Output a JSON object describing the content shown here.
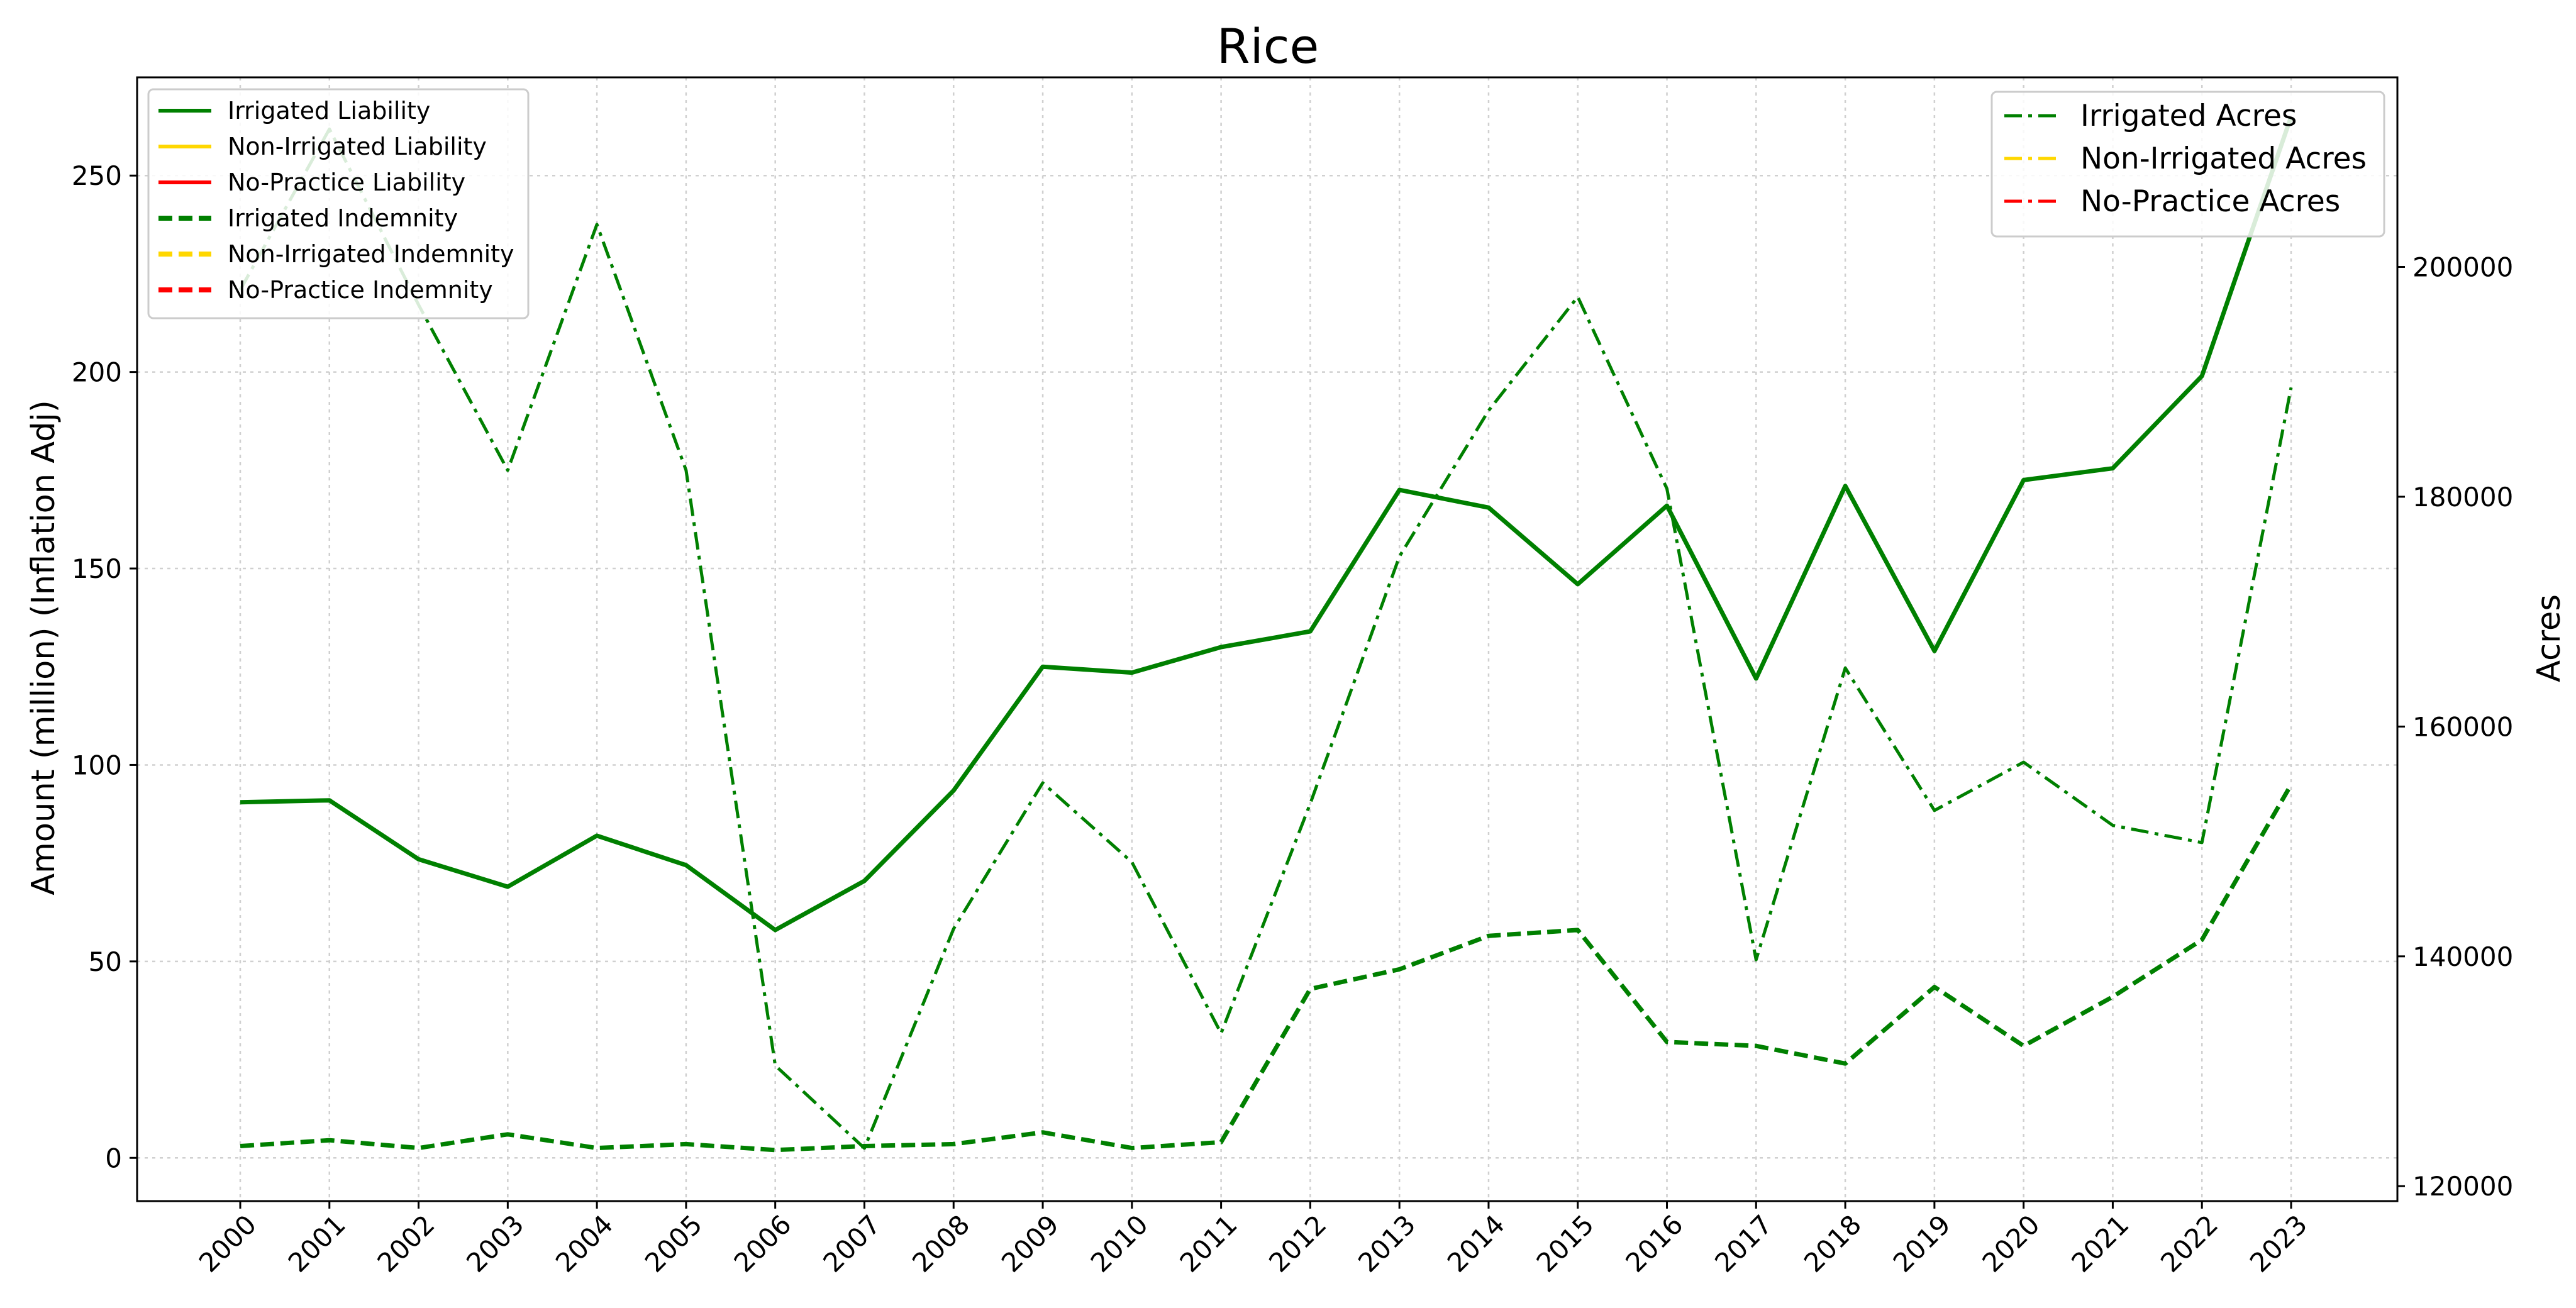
{
  "chart_data": {
    "type": "line",
    "title": "Rice",
    "xlabel": "",
    "ylabel": "Amount (million) (Inflation Adj)",
    "y2label": "Acres",
    "grid": true,
    "categories": [
      "2000",
      "2001",
      "2002",
      "2003",
      "2004",
      "2005",
      "2006",
      "2007",
      "2008",
      "2009",
      "2010",
      "2011",
      "2012",
      "2013",
      "2014",
      "2015",
      "2016",
      "2017",
      "2018",
      "2019",
      "2020",
      "2021",
      "2022",
      "2023"
    ],
    "ylim": [
      -11,
      275
    ],
    "y2lim": [
      118700,
      216500
    ],
    "yticks": [
      0,
      50,
      100,
      150,
      200,
      250
    ],
    "y2ticks": [
      120000,
      140000,
      160000,
      180000,
      200000
    ],
    "legend_left": {
      "position": "upper left",
      "entries": [
        {
          "name": "Irrigated Liability",
          "color": "#008000",
          "style": "solid"
        },
        {
          "name": "Non-Irrigated Liability",
          "color": "#FFD700",
          "style": "solid"
        },
        {
          "name": "No-Practice Liability",
          "color": "#FF0000",
          "style": "solid"
        },
        {
          "name": "Irrigated Indemnity",
          "color": "#008000",
          "style": "dashed"
        },
        {
          "name": "Non-Irrigated Indemnity",
          "color": "#FFD700",
          "style": "dashed"
        },
        {
          "name": "No-Practice Indemnity",
          "color": "#FF0000",
          "style": "dashed"
        }
      ]
    },
    "legend_right": {
      "position": "upper right",
      "entries": [
        {
          "name": "Irrigated Acres",
          "color": "#008000",
          "style": "dashdot"
        },
        {
          "name": "Non-Irrigated Acres",
          "color": "#FFD700",
          "style": "dashdot"
        },
        {
          "name": "No-Practice Acres",
          "color": "#FF0000",
          "style": "dashdot"
        }
      ]
    },
    "series": [
      {
        "name": "Irrigated Liability",
        "axis": "left",
        "style": "solid",
        "color": "#008000",
        "values": [
          90.5,
          91,
          76,
          69,
          82,
          74.5,
          58,
          70.5,
          93.5,
          125,
          123.5,
          130,
          134,
          170,
          165.5,
          146,
          166,
          122,
          171,
          129,
          172.5,
          175.5,
          199,
          265
        ]
      },
      {
        "name": "Irrigated Indemnity",
        "axis": "left",
        "style": "dashed",
        "color": "#008000",
        "values": [
          3,
          4.5,
          2.5,
          6,
          2.5,
          3.5,
          2,
          3,
          3.5,
          6.5,
          2.5,
          4,
          43,
          48,
          56.5,
          58,
          29.5,
          28.5,
          24,
          43.5,
          28.5,
          41,
          55.5,
          95
        ]
      },
      {
        "name": "Irrigated Acres",
        "axis": "right",
        "style": "dashdot",
        "color": "#008000",
        "values": [
          198000,
          212000,
          196700,
          182300,
          203700,
          182300,
          130500,
          123300,
          142400,
          155100,
          148200,
          133300,
          153300,
          174800,
          187500,
          197400,
          180700,
          139700,
          165100,
          152700,
          156900,
          151400,
          149900,
          189500
        ]
      }
    ]
  }
}
